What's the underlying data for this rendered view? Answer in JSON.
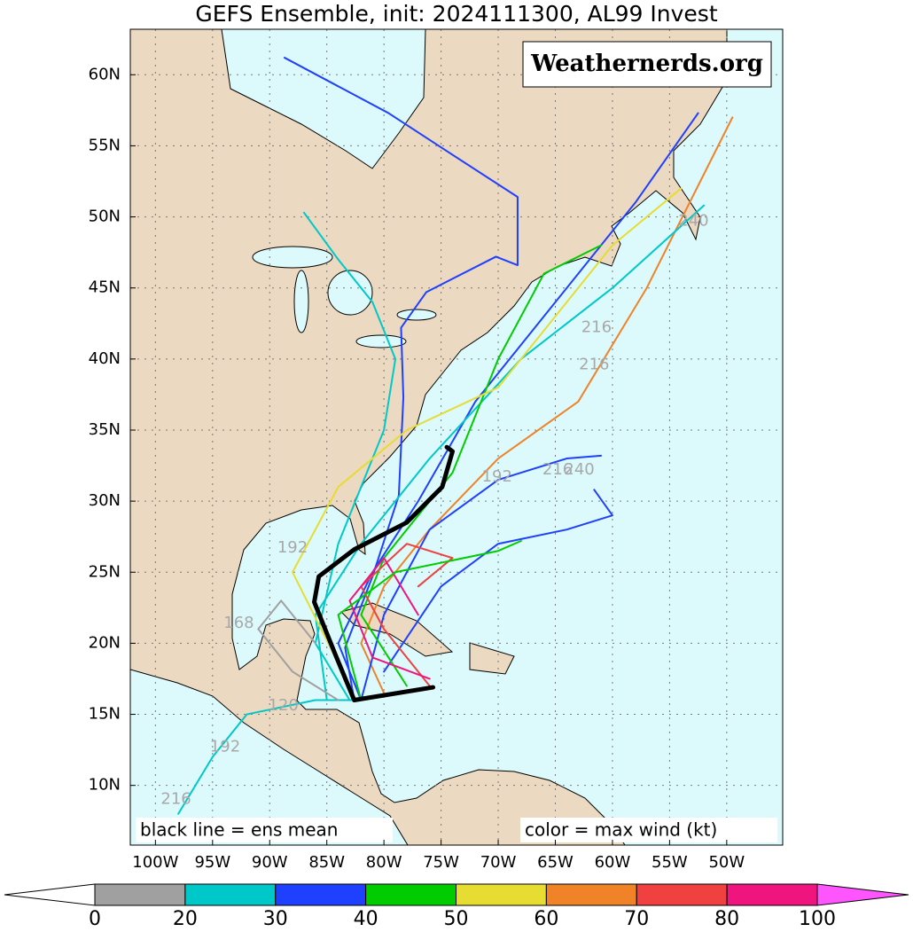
{
  "header": {
    "title": "GEFS Ensemble, init: 2024111300, AL99 Invest"
  },
  "watermark": "Weathernerds.org",
  "notes": {
    "mean": "black line = ens mean",
    "color": "color = max wind (kt)"
  },
  "map": {
    "lonlim": [
      -102.2,
      -45.1
    ],
    "latlim": [
      5.8,
      63.2
    ],
    "lonticks": [
      {
        "value": -100,
        "label": "100W"
      },
      {
        "value": -95,
        "label": "95W"
      },
      {
        "value": -90,
        "label": "90W"
      },
      {
        "value": -85,
        "label": "85W"
      },
      {
        "value": -80,
        "label": "80W"
      },
      {
        "value": -75,
        "label": "75W"
      },
      {
        "value": -70,
        "label": "70W"
      },
      {
        "value": -65,
        "label": "65W"
      },
      {
        "value": -60,
        "label": "60W"
      },
      {
        "value": -55,
        "label": "55W"
      },
      {
        "value": -50,
        "label": "50W"
      }
    ],
    "latticks": [
      {
        "value": 10,
        "label": "10N"
      },
      {
        "value": 15,
        "label": "15N"
      },
      {
        "value": 20,
        "label": "20N"
      },
      {
        "value": 25,
        "label": "25N"
      },
      {
        "value": 30,
        "label": "30N"
      },
      {
        "value": 35,
        "label": "35N"
      },
      {
        "value": 40,
        "label": "40N"
      },
      {
        "value": 45,
        "label": "45N"
      },
      {
        "value": 50,
        "label": "50N"
      },
      {
        "value": 55,
        "label": "55N"
      },
      {
        "value": 60,
        "label": "60N"
      }
    ],
    "grid": true
  },
  "tracks": [
    {
      "color": "#2040ff",
      "lon": [
        -82.6,
        -83.4,
        -81,
        -78.7,
        -78.3,
        -78.5,
        -76.3,
        -70.2,
        -68.3,
        -68.3,
        -75.4,
        -79.6,
        -88.7
      ],
      "lat": [
        16,
        19.7,
        24.7,
        30.4,
        37.3,
        42.2,
        44.7,
        47.2,
        46.6,
        51.4,
        55.1,
        57.3,
        61.2
      ]
    },
    {
      "color": "#f08228",
      "lon": [
        -80,
        -82,
        -80,
        -76,
        -70,
        -63,
        -57,
        -49.5
      ],
      "lat": [
        16.5,
        20,
        24,
        28,
        33,
        37,
        45,
        57
      ]
    },
    {
      "color": "#2040ff",
      "lon": [
        -82,
        -84,
        -81,
        -77,
        -72,
        -65,
        -58,
        -52.5
      ],
      "lat": [
        16,
        20,
        25,
        30,
        37,
        44,
        51,
        57.3
      ]
    },
    {
      "color": "#00c8c8",
      "lon": [
        -85,
        -86,
        -82,
        -76,
        -68,
        -60,
        -52
      ],
      "lat": [
        16,
        22,
        27,
        33,
        40,
        45,
        50.8
      ]
    },
    {
      "color": "#2040ff",
      "lon": [
        -82,
        -80,
        -76,
        -70,
        -64,
        -61
      ],
      "lat": [
        16,
        22,
        28,
        31.5,
        33,
        33.2
      ]
    },
    {
      "color": "#2040ff",
      "lon": [
        -80,
        -75,
        -70,
        -64,
        -60,
        -61.6
      ],
      "lat": [
        18,
        24,
        27,
        28,
        29,
        30.8
      ]
    },
    {
      "color": "#00cc00",
      "lon": [
        -78,
        -82,
        -80,
        -74,
        -70,
        -66,
        -61
      ],
      "lat": [
        17,
        22,
        26,
        32,
        40,
        46,
        48
      ]
    },
    {
      "color": "#00c8c8",
      "lon": [
        -82,
        -86,
        -92,
        -95,
        -98
      ],
      "lat": [
        16,
        16,
        15,
        12,
        8
      ]
    },
    {
      "color": "#00c8c8",
      "lon": [
        -83,
        -86,
        -84,
        -80,
        -79,
        -81,
        -84,
        -87
      ],
      "lat": [
        16,
        20,
        27,
        35,
        40,
        44,
        47,
        50.3
      ]
    },
    {
      "color": "#f04040",
      "lon": [
        -76,
        -80,
        -82,
        -78,
        -74,
        -77
      ],
      "lat": [
        17,
        21,
        24,
        27,
        26,
        24
      ]
    },
    {
      "color": "#e6dc32",
      "lon": [
        -83,
        -88,
        -84,
        -78,
        -70,
        -60,
        -54
      ],
      "lat": [
        17,
        25,
        31,
        35,
        38,
        48,
        52
      ]
    },
    {
      "color": "#a0a0a0",
      "lon": [
        -84,
        -88,
        -91,
        -89,
        -86
      ],
      "lat": [
        16,
        18,
        21,
        23,
        20
      ]
    },
    {
      "color": "#f0147f",
      "lon": [
        -76,
        -81,
        -83,
        -80,
        -77
      ],
      "lat": [
        17.5,
        19,
        23,
        26,
        22
      ]
    },
    {
      "color": "#00cc00",
      "lon": [
        -82,
        -84,
        -79,
        -70,
        -68
      ],
      "lat": [
        16,
        22,
        25,
        26.5,
        27.2
      ]
    }
  ],
  "mean_track": {
    "color": "#000000",
    "lon": [
      -75.7,
      -82.6,
      -84.2,
      -86.1,
      -85.7,
      -82.6,
      -78,
      -74.9,
      -74,
      -74.5
    ],
    "lat": [
      16.9,
      16,
      19.1,
      22.9,
      24.7,
      26.6,
      28.5,
      31,
      33.5,
      33.8
    ]
  },
  "hour_labels": [
    {
      "value": 240,
      "lon": -52.9,
      "lat": 49.7
    },
    {
      "value": 240,
      "lon": -62.9,
      "lat": 32.2
    },
    {
      "value": 216,
      "lon": -64.8,
      "lat": 32.2
    },
    {
      "value": 216,
      "lon": -61.4,
      "lat": 42.2
    },
    {
      "value": 216,
      "lon": -61.6,
      "lat": 39.6
    },
    {
      "value": 192,
      "lon": -70.1,
      "lat": 31.7
    },
    {
      "value": 192,
      "lon": -88,
      "lat": 26.7
    },
    {
      "value": 192,
      "lon": -93.9,
      "lat": 12.7
    },
    {
      "value": 216,
      "lon": -98.2,
      "lat": 9
    },
    {
      "value": 168,
      "lon": -92.7,
      "lat": 21.4
    },
    {
      "value": 120,
      "lon": -88.8,
      "lat": 15.6
    }
  ],
  "colorbar": {
    "bounds": [
      0,
      20,
      30,
      40,
      50,
      60,
      70,
      80,
      100
    ],
    "colors": [
      "#a0a0a0",
      "#00c8c8",
      "#2040ff",
      "#00cc00",
      "#e6dc32",
      "#f08228",
      "#f04040",
      "#f0147f"
    ],
    "under": "#ffffff",
    "over": "#ff55ff"
  }
}
